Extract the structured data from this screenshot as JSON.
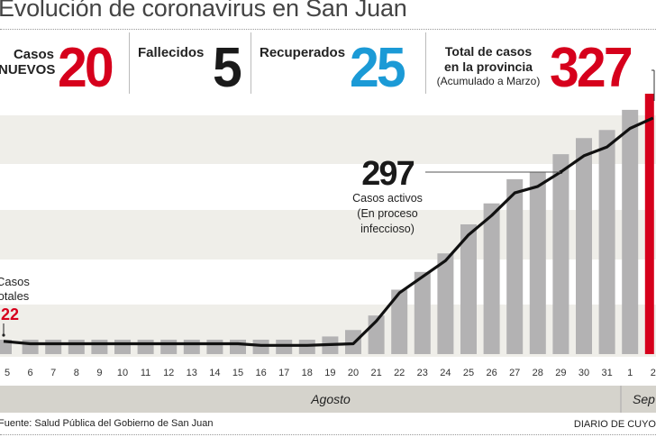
{
  "title": "Evolución de coronavirus en San Juan",
  "stats": {
    "new_cases": {
      "label_line1": "Casos",
      "label_line2": "NUEVOS",
      "value": "20",
      "color": "#d6001c"
    },
    "deaths": {
      "label": "Fallecidos",
      "value": "5",
      "color": "#1a1a1a"
    },
    "recovered": {
      "label": "Recuperados",
      "value": "25",
      "color": "#1b9ad6"
    },
    "total": {
      "label_line1": "Total de casos",
      "label_line2": "en la provincia",
      "label_line3": "(Acumulado a Marzo)",
      "value": "327",
      "color": "#d6001c"
    }
  },
  "annotations": {
    "start_total": {
      "line1": "Casos",
      "line2": "totales",
      "value": "22"
    },
    "active": {
      "value": "297",
      "line1": "Casos activos",
      "line2": "(En proceso",
      "line3": "infeccioso)"
    }
  },
  "months": {
    "august": "Agosto",
    "september": "Sep"
  },
  "footer": {
    "source": "Fuente: Salud Pública del Gobierno de San Juan",
    "brand": "DIARIO DE CUYO"
  },
  "colors": {
    "bar": "#b3b2b3",
    "highlight": "#d6001c",
    "line": "#111111",
    "band": "#efeee9",
    "month_band": "#d5d3cc"
  },
  "chart_data": {
    "type": "bar",
    "title": "Evolución de coronavirus en San Juan",
    "xlabel": "",
    "ylabel": "",
    "categories": [
      "5",
      "6",
      "7",
      "8",
      "9",
      "10",
      "11",
      "12",
      "13",
      "14",
      "15",
      "16",
      "17",
      "18",
      "19",
      "20",
      "21",
      "22",
      "23",
      "24",
      "25",
      "26",
      "27",
      "28",
      "29",
      "30",
      "31",
      "1",
      "2"
    ],
    "months": [
      {
        "name": "Agosto",
        "from": "5",
        "to": "31"
      },
      {
        "name": "Sep",
        "from": "1",
        "to": "2"
      }
    ],
    "ylim": [
      0,
      340
    ],
    "grid": "horizontal bands",
    "series": [
      {
        "name": "Casos totales",
        "type": "bar",
        "values": [
          22,
          22,
          22,
          22,
          22,
          22,
          22,
          22,
          22,
          22,
          22,
          22,
          22,
          22,
          26,
          34,
          52,
          84,
          106,
          129,
          165,
          191,
          221,
          230,
          252,
          272,
          282,
          307,
          327
        ],
        "highlight_last": true
      },
      {
        "name": "Casos activos",
        "type": "line",
        "values": [
          20,
          17,
          17,
          17,
          17,
          17,
          17,
          17,
          17,
          17,
          17,
          15,
          15,
          15,
          16,
          17,
          45,
          80,
          100,
          120,
          152,
          176,
          204,
          212,
          230,
          250,
          261,
          284,
          297
        ]
      }
    ]
  }
}
